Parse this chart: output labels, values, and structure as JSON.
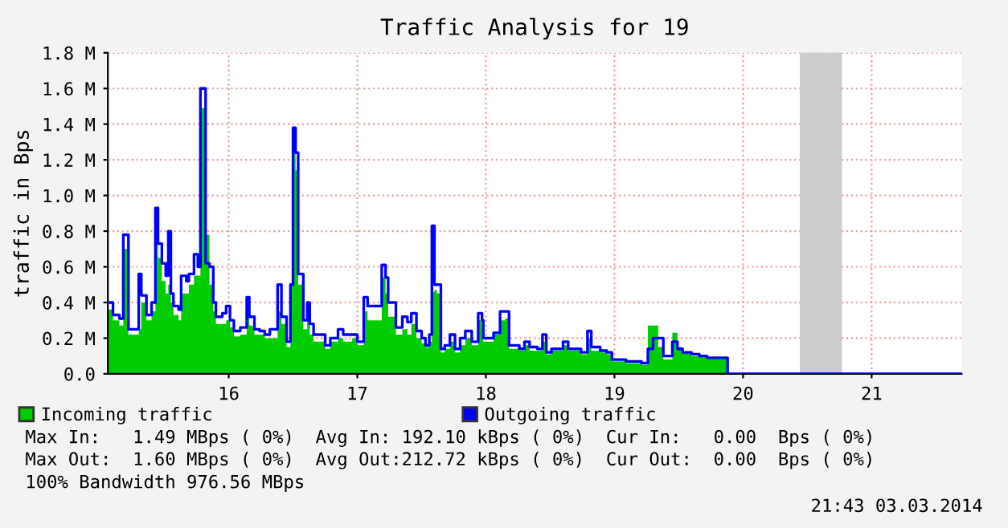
{
  "chart_data": {
    "type": "step",
    "title": "Traffic Analysis for 19",
    "ylabel": "traffic in Bps",
    "xlim": [
      15.06,
      21.7
    ],
    "xticks": [
      16,
      17,
      18,
      19,
      20,
      21
    ],
    "ylim": [
      0,
      1.8
    ],
    "yticks": [
      {
        "value": 0,
        "label": "0.0"
      },
      {
        "value": 0.2,
        "label": "0.2 M"
      },
      {
        "value": 0.4,
        "label": "0.4 M"
      },
      {
        "value": 0.6,
        "label": "0.6 M"
      },
      {
        "value": 0.8,
        "label": "0.8 M"
      },
      {
        "value": 1.0,
        "label": "1.0 M"
      },
      {
        "value": 1.2,
        "label": "1.2 M"
      },
      {
        "value": 1.4,
        "label": "1.4 M"
      },
      {
        "value": 1.6,
        "label": "1.6 M"
      },
      {
        "value": 1.8,
        "label": "1.8 M"
      }
    ],
    "grid": true,
    "legend": "bottom",
    "line_style": "solid",
    "marker": "none",
    "bands": [
      {
        "axis": "x",
        "from": 20.45,
        "to": 20.76,
        "label": null,
        "color": "#cccccc"
      }
    ],
    "x": [
      15.06,
      15.1,
      15.15,
      15.18,
      15.22,
      15.3,
      15.32,
      15.36,
      15.4,
      15.43,
      15.45,
      15.48,
      15.51,
      15.53,
      15.55,
      15.57,
      15.61,
      15.63,
      15.67,
      15.69,
      15.73,
      15.76,
      15.78,
      15.82,
      15.85,
      15.88,
      15.9,
      15.95,
      15.98,
      16.01,
      16.04,
      16.09,
      16.14,
      16.16,
      16.2,
      16.24,
      16.28,
      16.32,
      16.38,
      16.41,
      16.45,
      16.48,
      16.5,
      16.52,
      16.54,
      16.58,
      16.61,
      16.63,
      16.66,
      16.7,
      16.75,
      16.79,
      16.85,
      16.89,
      16.96,
      17.0,
      17.05,
      17.08,
      17.13,
      17.19,
      17.22,
      17.24,
      17.3,
      17.35,
      17.39,
      17.42,
      17.46,
      17.5,
      17.53,
      17.56,
      17.58,
      17.6,
      17.62,
      17.65,
      17.68,
      17.72,
      17.76,
      17.8,
      17.84,
      17.89,
      17.94,
      17.97,
      17.98,
      18.06,
      18.11,
      18.15,
      18.18,
      18.26,
      18.3,
      18.34,
      18.4,
      18.44,
      18.47,
      18.51,
      18.6,
      18.64,
      18.74,
      18.79,
      18.82,
      18.89,
      18.94,
      18.98,
      19.02,
      19.09,
      19.15,
      19.21,
      19.26,
      19.3,
      19.34,
      19.38,
      19.45,
      19.49,
      19.53,
      19.6,
      19.66,
      19.72,
      19.85,
      19.88,
      21.7
    ],
    "series": [
      {
        "name": "Incoming traffic",
        "type": "area",
        "color": "#00cc00",
        "values": [
          0.36,
          0.3,
          0.27,
          0.7,
          0.22,
          0.25,
          0.4,
          0.3,
          0.35,
          0.86,
          0.65,
          0.52,
          0.45,
          0.5,
          0.4,
          0.33,
          0.3,
          0.45,
          0.45,
          0.5,
          0.55,
          0.55,
          1.49,
          0.78,
          0.5,
          0.35,
          0.28,
          0.28,
          0.3,
          0.26,
          0.21,
          0.22,
          0.36,
          0.27,
          0.22,
          0.22,
          0.2,
          0.2,
          0.35,
          0.28,
          0.15,
          0.5,
          1.3,
          1.14,
          0.5,
          0.25,
          0.32,
          0.22,
          0.18,
          0.18,
          0.14,
          0.18,
          0.2,
          0.18,
          0.2,
          0.16,
          0.35,
          0.3,
          0.3,
          0.54,
          0.45,
          0.32,
          0.22,
          0.25,
          0.22,
          0.28,
          0.2,
          0.17,
          0.15,
          0.18,
          0.46,
          0.47,
          0.45,
          0.12,
          0.14,
          0.18,
          0.12,
          0.16,
          0.2,
          0.16,
          0.3,
          0.26,
          0.18,
          0.22,
          0.3,
          0.31,
          0.14,
          0.13,
          0.16,
          0.13,
          0.13,
          0.18,
          0.11,
          0.13,
          0.16,
          0.13,
          0.11,
          0.2,
          0.13,
          0.12,
          0.11,
          0.07,
          0.07,
          0.06,
          0.06,
          0.05,
          0.27,
          0.27,
          0.15,
          0.08,
          0.23,
          0.15,
          0.12,
          0.1,
          0.1,
          0.09,
          0.09,
          0.0,
          0.0
        ]
      },
      {
        "name": "Outgoing traffic",
        "color": "#0000ff",
        "values": [
          0.4,
          0.33,
          0.31,
          0.78,
          0.25,
          0.56,
          0.44,
          0.33,
          0.4,
          0.93,
          0.73,
          0.62,
          0.55,
          0.8,
          0.45,
          0.38,
          0.36,
          0.55,
          0.52,
          0.56,
          0.67,
          0.6,
          1.6,
          0.62,
          0.6,
          0.4,
          0.32,
          0.34,
          0.38,
          0.3,
          0.24,
          0.26,
          0.43,
          0.32,
          0.25,
          0.24,
          0.22,
          0.25,
          0.5,
          0.32,
          0.18,
          0.5,
          1.38,
          1.24,
          0.56,
          0.3,
          0.4,
          0.28,
          0.22,
          0.22,
          0.16,
          0.2,
          0.25,
          0.22,
          0.22,
          0.18,
          0.43,
          0.38,
          0.38,
          0.61,
          0.54,
          0.4,
          0.26,
          0.32,
          0.29,
          0.34,
          0.24,
          0.2,
          0.16,
          0.22,
          0.83,
          0.5,
          0.5,
          0.14,
          0.16,
          0.22,
          0.14,
          0.2,
          0.24,
          0.18,
          0.34,
          0.3,
          0.2,
          0.23,
          0.35,
          0.35,
          0.16,
          0.14,
          0.18,
          0.15,
          0.14,
          0.22,
          0.12,
          0.14,
          0.18,
          0.14,
          0.12,
          0.24,
          0.15,
          0.13,
          0.12,
          0.08,
          0.08,
          0.07,
          0.07,
          0.06,
          0.14,
          0.2,
          0.2,
          0.1,
          0.18,
          0.14,
          0.12,
          0.11,
          0.1,
          0.09,
          0.09,
          0.0,
          0.0
        ]
      }
    ],
    "annotations": [
      "Max In:   1.49 MBps ( 0%)  Avg In: 192.10 kBps ( 0%)  Cur In:   0.00  Bps ( 0%)",
      "Max Out:  1.60 MBps ( 0%)  Avg Out:212.72 kBps ( 0%)  Cur Out:  0.00  Bps ( 0%)",
      "100% Bandwidth 976.56 MBps",
      "21:43 03.03.2014"
    ]
  }
}
